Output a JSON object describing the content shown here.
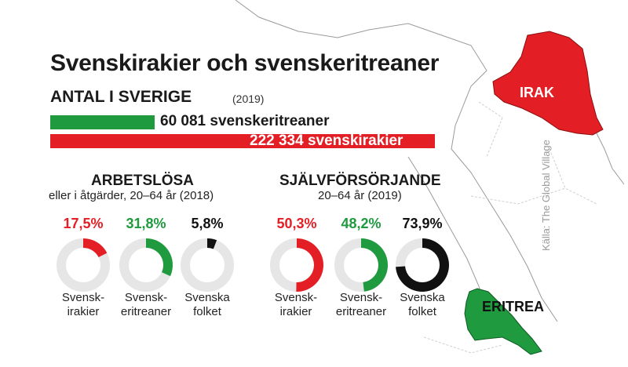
{
  "title": "Svenskirakier och svenskeritreaner",
  "subtitle": "ANTAL I SVERIGE",
  "subtitle_year": "(2019)",
  "colors": {
    "green": "#1f9a3f",
    "red": "#e31e24",
    "black": "#111111",
    "track": "#e6e6e6"
  },
  "map": {
    "label_irak": "IRAK",
    "label_eritrea": "ERITREA",
    "source": "Källa: The Global Village"
  },
  "chart_data": [
    {
      "type": "bar",
      "orientation": "horizontal",
      "series": [
        {
          "name": "svenskeritreaner",
          "value": 60081,
          "label": "60 081 svenskeritreaner",
          "color": "#1f9a3f"
        },
        {
          "name": "svenskirakier",
          "value": 222334,
          "label": "222 334 svenskirakier",
          "color": "#e31e24"
        }
      ]
    },
    {
      "type": "pie",
      "style": "donut",
      "title": "ARBETSLÖSA",
      "subtitle": "eller i åtgärder, 20–64 år (2018)",
      "items": [
        {
          "line1": "Svensk-",
          "line2": "irakier",
          "value": 17.5,
          "label": "17,5%",
          "color": "#e31e24"
        },
        {
          "line1": "Svensk-",
          "line2": "eritreaner",
          "value": 31.8,
          "label": "31,8%",
          "color": "#1f9a3f"
        },
        {
          "line1": "Svenska",
          "line2": "folket",
          "value": 5.8,
          "label": "5,8%",
          "color": "#111111"
        }
      ]
    },
    {
      "type": "pie",
      "style": "donut",
      "title": "SJÄLVFÖRSÖRJANDE",
      "subtitle": "20–64 år (2019)",
      "items": [
        {
          "line1": "Svensk-",
          "line2": "irakier",
          "value": 50.3,
          "label": "50,3%",
          "color": "#e31e24"
        },
        {
          "line1": "Svensk-",
          "line2": "eritreaner",
          "value": 48.2,
          "label": "48,2%",
          "color": "#1f9a3f"
        },
        {
          "line1": "Svenska",
          "line2": "folket",
          "value": 73.9,
          "label": "73,9%",
          "color": "#111111"
        }
      ]
    }
  ]
}
